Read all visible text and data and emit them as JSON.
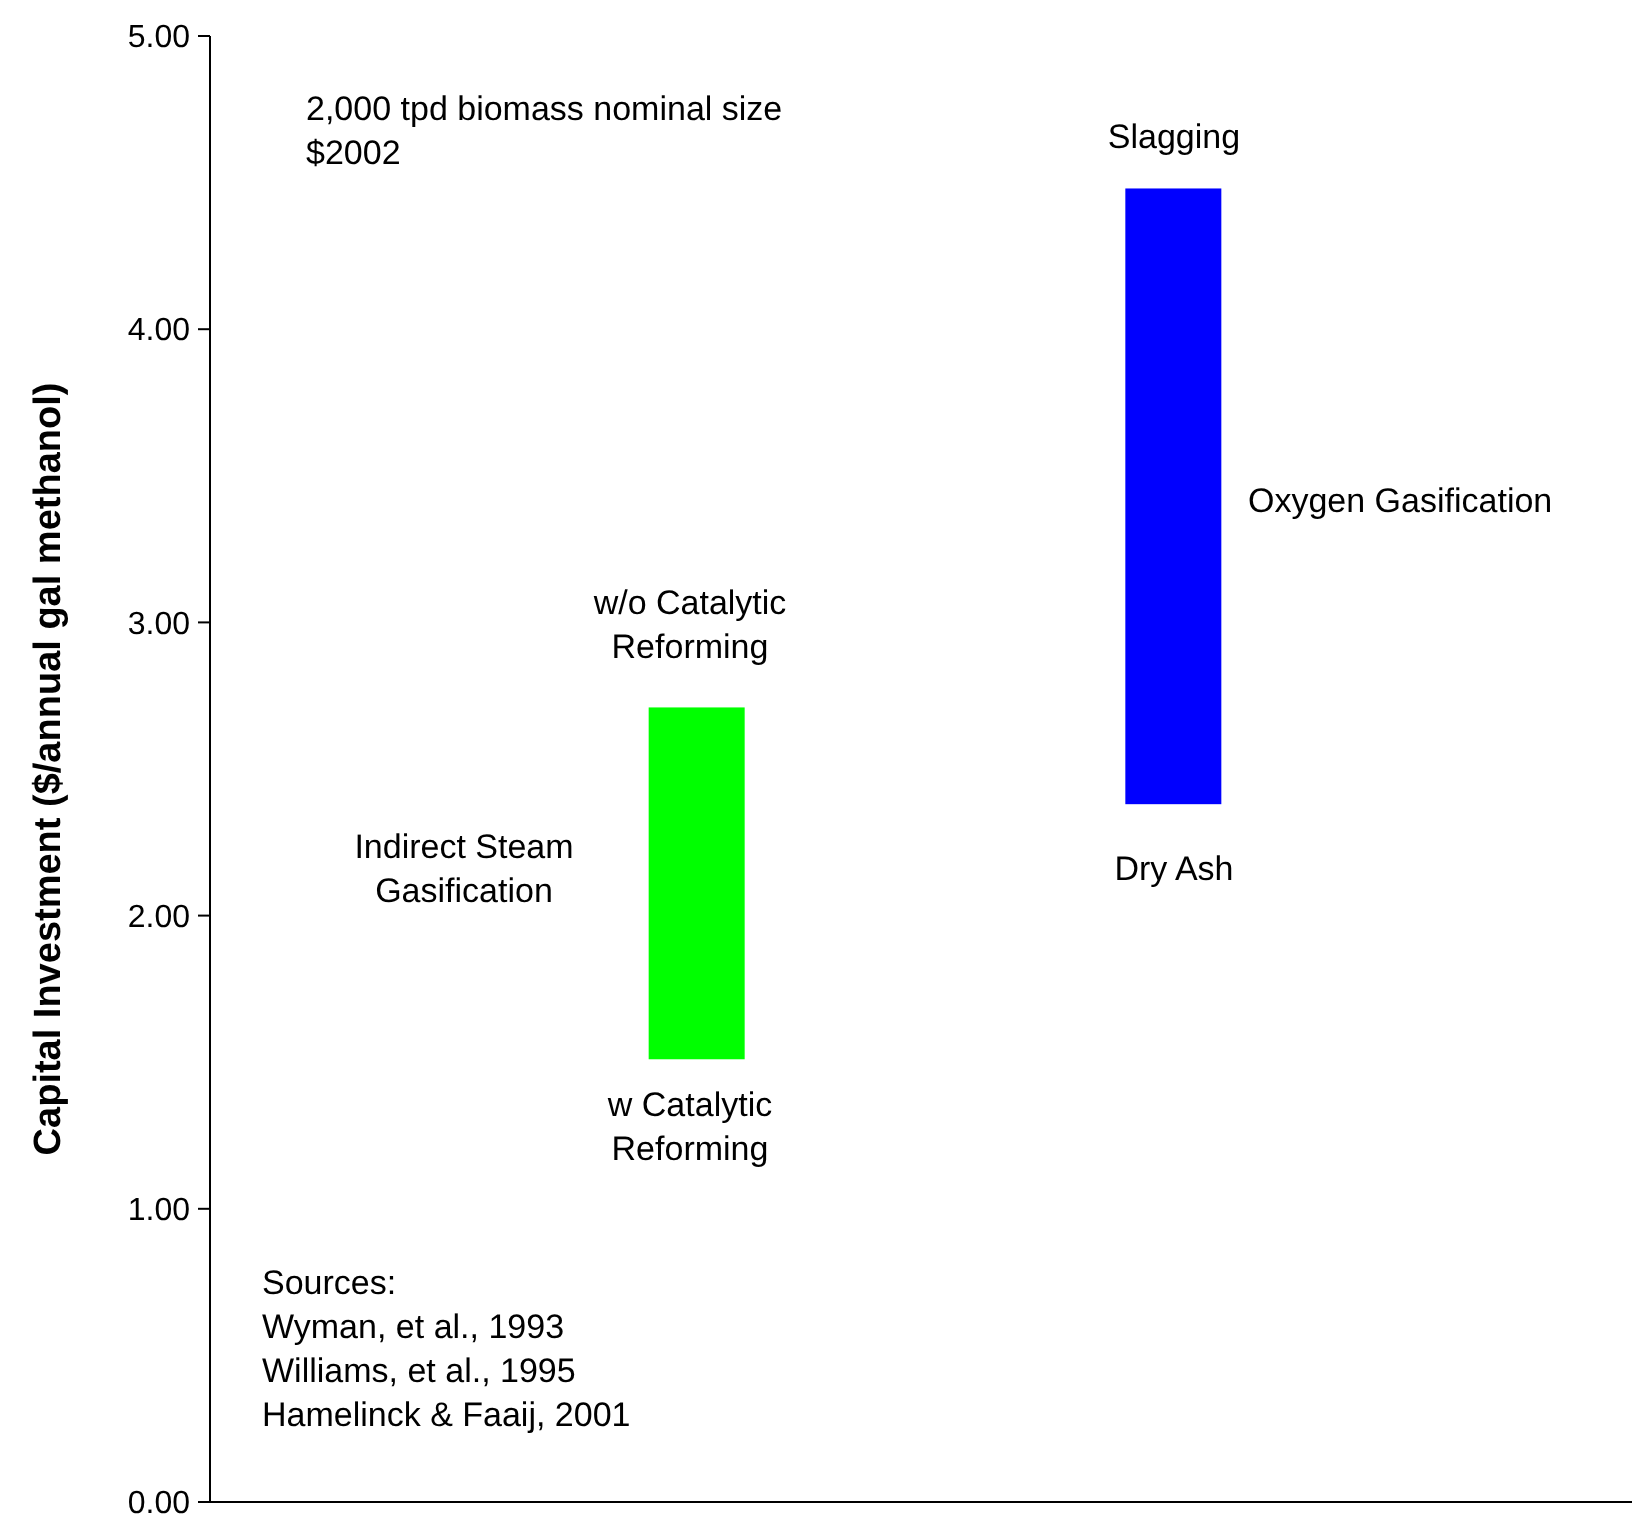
{
  "chart_data": {
    "type": "bar",
    "categories": [
      null,
      null
    ],
    "values": [
      1.2,
      2.1
    ],
    "base": [
      1.51,
      2.38
    ],
    "colors": [
      "#00ff00",
      "#0000ff"
    ],
    "ylabel": "Capital Investment ($/annual gal methanol)",
    "ylim": [
      0,
      5
    ],
    "yticks": [
      {
        "value": 0,
        "label": "0.00"
      },
      {
        "value": 1,
        "label": "1.00"
      },
      {
        "value": 2,
        "label": "2.00"
      },
      {
        "value": 3,
        "label": "3.00"
      },
      {
        "value": 4,
        "label": "4.00"
      },
      {
        "value": 5,
        "label": "5.00"
      }
    ],
    "grid": false,
    "annotations": [
      "2,000 tpd biomass nominal size\n$2002",
      "w/o Catalytic\nReforming",
      "w Catalytic\nReforming",
      "Indirect Steam\nGasification",
      "Slagging",
      "Dry Ash",
      "Oxygen Gasification",
      "Sources:\nWyman, et al., 1993\nWilliams, et al., 1995\nHamelinck & Faaij, 2001"
    ]
  }
}
